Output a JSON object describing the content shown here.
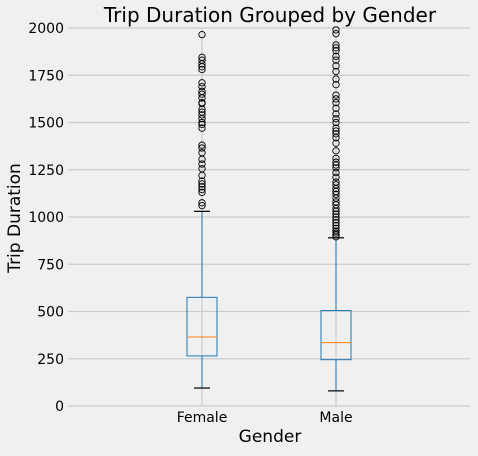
{
  "chart_data": {
    "type": "box",
    "title": "Trip Duration Grouped by Gender",
    "xlabel": "Gender",
    "ylabel": "Trip Duration",
    "ylim": [
      0,
      2000
    ],
    "yticks": [
      0,
      250,
      500,
      750,
      1000,
      1250,
      1500,
      1750,
      2000
    ],
    "grid": true,
    "categories": [
      "Female",
      "Male"
    ],
    "boxes": [
      {
        "category": "Female",
        "whisker_low": 95,
        "q1": 265,
        "median": 365,
        "q3": 575,
        "whisker_high": 1030,
        "outliers": [
          1060,
          1075,
          1130,
          1145,
          1160,
          1175,
          1190,
          1220,
          1255,
          1280,
          1305,
          1340,
          1365,
          1380,
          1470,
          1490,
          1500,
          1520,
          1540,
          1555,
          1570,
          1600,
          1605,
          1630,
          1650,
          1665,
          1690,
          1710,
          1780,
          1795,
          1810,
          1830,
          1845,
          1965
        ]
      },
      {
        "category": "Male",
        "whisker_low": 80,
        "q1": 245,
        "median": 335,
        "q3": 505,
        "whisker_high": 890,
        "outliers": [
          895,
          905,
          915,
          925,
          940,
          955,
          970,
          985,
          1000,
          1015,
          1030,
          1045,
          1065,
          1080,
          1100,
          1120,
          1135,
          1150,
          1170,
          1185,
          1210,
          1235,
          1260,
          1275,
          1290,
          1310,
          1350,
          1390,
          1420,
          1440,
          1455,
          1470,
          1500,
          1520,
          1545,
          1575,
          1605,
          1625,
          1645,
          1700,
          1730,
          1770,
          1800,
          1830,
          1850,
          1880,
          1895,
          1910,
          1970,
          1990
        ]
      }
    ]
  },
  "colors": {
    "background": "#f0f0f0",
    "grid": "#cbcbcb",
    "box": "#1f77b4",
    "median": "#ff7f0e",
    "whisker_cap": "#000000",
    "text": "#000000"
  }
}
